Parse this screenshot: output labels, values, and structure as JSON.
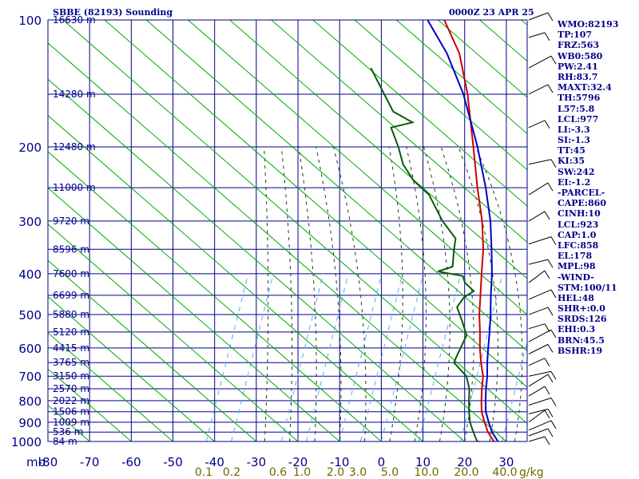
{
  "header": {
    "title": "SBBE (82193) Sounding",
    "datetime": "0000Z 23 APR 25"
  },
  "indices": [
    "WMO:82193",
    "TP:107",
    "FRZ:563",
    "WB0:580",
    "PW:2.41",
    "RH:83.7",
    "MAXT:32.4",
    "TH:5796",
    "L57:5.8",
    "LCL:977",
    "LI:-3.3",
    "SI:-1.3",
    "TT:45",
    "KI:35",
    "SW:242",
    "EI:-1.2",
    "-PARCEL-",
    "CAPE:860",
    "CINH:10",
    "LCL:923",
    "CAP:1.0",
    "LFC:858",
    "EL:178",
    "MPL:98",
    "-WIND-",
    "STM:100/11",
    "HEL:48",
    "SHR+:0.0",
    "SRDS:126",
    "EHI:0.3",
    "BRN:45.5",
    "BSHR:19"
  ],
  "colors": {
    "grid": "#00008b",
    "dry_adiabat": "#00aa00",
    "mixing_ratio": "#55aaff",
    "moist_adiabat": "#1f3a1f",
    "temperature": "#cc0000",
    "dewpoint": "#0b5a0b",
    "parcel": "#0000cc",
    "labels": "#00008b",
    "mixing_labels": "#6b6b00"
  },
  "chart_data": {
    "type": "line",
    "title": "SBBE (82193) Sounding",
    "x_axis": {
      "label": "",
      "unit_label": "",
      "range": [
        -80,
        35
      ],
      "ticks": [
        -80,
        -70,
        -60,
        -50,
        -40,
        -30,
        -20,
        -10,
        0,
        10,
        20,
        30
      ]
    },
    "y_axis": {
      "label": "mb",
      "scale": "log",
      "range": [
        1000,
        100
      ],
      "pressure_ticks": [
        1000,
        900,
        800,
        700,
        600,
        500,
        400,
        300,
        200,
        100
      ],
      "height_labels": [
        {
          "p": 100,
          "h": "16630 m"
        },
        {
          "p": 150,
          "h": "14280 m"
        },
        {
          "p": 200,
          "h": "12480 m"
        },
        {
          "p": 250,
          "h": "11000 m"
        },
        {
          "p": 300,
          "h": "9720 m"
        },
        {
          "p": 350,
          "h": "8596 m"
        },
        {
          "p": 400,
          "h": "7600 m"
        },
        {
          "p": 450,
          "h": "6699 m"
        },
        {
          "p": 500,
          "h": "5880 m"
        },
        {
          "p": 550,
          "h": "5120 m"
        },
        {
          "p": 600,
          "h": "4415 m"
        },
        {
          "p": 650,
          "h": "3765 m"
        },
        {
          "p": 700,
          "h": "3150 m"
        },
        {
          "p": 750,
          "h": "2570 m"
        },
        {
          "p": 800,
          "h": "2022 m"
        },
        {
          "p": 850,
          "h": "1506 m"
        },
        {
          "p": 900,
          "h": "1009 m"
        },
        {
          "p": 950,
          "h": "536 m"
        },
        {
          "p": 1000,
          "h": "84 m"
        }
      ]
    },
    "mixing_ratio_labels": [
      "0.1",
      "0.2",
      "0.6",
      "1.0",
      "2.0",
      "3.0",
      "5.0",
      "10.0",
      "20.0",
      "40.0"
    ],
    "mixing_ratio_unit": "g/kg",
    "series": [
      {
        "role": "temperature",
        "points": [
          [
            1005,
            28
          ],
          [
            1000,
            27
          ],
          [
            950,
            23.5
          ],
          [
            900,
            20.5
          ],
          [
            850,
            17.5
          ],
          [
            800,
            15
          ],
          [
            750,
            12.5
          ],
          [
            700,
            10
          ],
          [
            650,
            6.5
          ],
          [
            600,
            3
          ],
          [
            550,
            -0.5
          ],
          [
            500,
            -4.5
          ],
          [
            450,
            -8.5
          ],
          [
            400,
            -13
          ],
          [
            350,
            -18
          ],
          [
            300,
            -24.5
          ],
          [
            250,
            -33
          ],
          [
            200,
            -43
          ],
          [
            150,
            -56
          ],
          [
            120,
            -67
          ],
          [
            100,
            -78
          ]
        ]
      },
      {
        "role": "dewpoint",
        "points": [
          [
            1005,
            25.5
          ],
          [
            1000,
            23
          ],
          [
            950,
            20
          ],
          [
            900,
            17
          ],
          [
            850,
            14.5
          ],
          [
            800,
            12
          ],
          [
            750,
            9.5
          ],
          [
            700,
            6
          ],
          [
            650,
            0
          ],
          [
            620,
            -1
          ],
          [
            560,
            -3
          ],
          [
            520,
            -7
          ],
          [
            480,
            -11.5
          ],
          [
            455,
            -12
          ],
          [
            440,
            -11
          ],
          [
            420,
            -15
          ],
          [
            405,
            -17
          ],
          [
            395,
            -24
          ],
          [
            385,
            -21.5
          ],
          [
            350,
            -25
          ],
          [
            330,
            -27
          ],
          [
            300,
            -34
          ],
          [
            260,
            -43
          ],
          [
            240,
            -50
          ],
          [
            220,
            -56
          ],
          [
            200,
            -61
          ],
          [
            180,
            -67
          ],
          [
            175,
            -63
          ],
          [
            165,
            -70
          ],
          [
            150,
            -76
          ],
          [
            130,
            -85
          ]
        ]
      },
      {
        "role": "parcel",
        "points": [
          [
            1000,
            28
          ],
          [
            950,
            24.5
          ],
          [
            900,
            21.5
          ],
          [
            850,
            18.5
          ],
          [
            800,
            16
          ],
          [
            750,
            13.5
          ],
          [
            700,
            11
          ],
          [
            650,
            8
          ],
          [
            600,
            5
          ],
          [
            550,
            1.8
          ],
          [
            500,
            -1.8
          ],
          [
            450,
            -6
          ],
          [
            400,
            -10.5
          ],
          [
            350,
            -16
          ],
          [
            300,
            -22.5
          ],
          [
            250,
            -31
          ],
          [
            200,
            -42
          ],
          [
            150,
            -57
          ],
          [
            120,
            -70
          ],
          [
            100,
            -82
          ]
        ]
      }
    ]
  }
}
